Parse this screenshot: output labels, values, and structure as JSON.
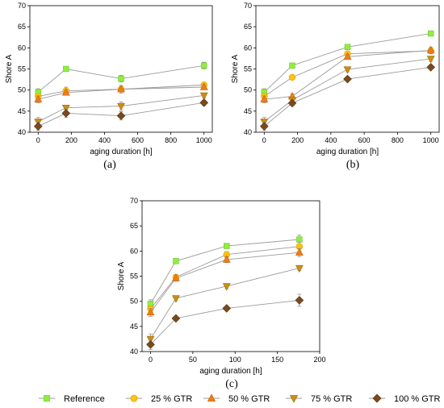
{
  "legend": [
    {
      "name": "Reference",
      "marker": "square",
      "color": "#90ee40",
      "edge": "#6cc828"
    },
    {
      "name": "25 % GTR",
      "marker": "circle",
      "color": "#ffc20e",
      "edge": "#d9a000"
    },
    {
      "name": "50 % GTR",
      "marker": "triangle-up",
      "color": "#f07d18",
      "edge": "#c86000"
    },
    {
      "name": "75 % GTR",
      "marker": "triangle-down",
      "color": "#cc8e14",
      "edge": "#a06a00"
    },
    {
      "name": "100 % GTR",
      "marker": "diamond",
      "color": "#7a4a1e",
      "edge": "#5a3410"
    }
  ],
  "line_color": "#9a9a9a",
  "chart_data": [
    {
      "type": "line",
      "panel_label": "(a)",
      "xlabel": "aging duration [h]",
      "ylabel": "Shore A",
      "xlim": [
        -50,
        1050
      ],
      "ylim": [
        40,
        70
      ],
      "xticks": [
        0,
        200,
        400,
        600,
        800,
        1000
      ],
      "yticks": [
        40,
        45,
        50,
        55,
        60,
        65,
        70
      ],
      "x": [
        0,
        168,
        500,
        1000
      ],
      "series": [
        {
          "name": "Reference",
          "values": [
            49.5,
            55.0,
            52.7,
            55.8
          ],
          "errors": [
            0.8,
            0.3,
            0.8,
            0.8
          ]
        },
        {
          "name": "25 % GTR",
          "values": [
            48.5,
            49.8,
            50.2,
            51.2
          ],
          "errors": [
            0.6,
            0.9,
            0.6,
            0.5
          ]
        },
        {
          "name": "50 % GTR",
          "values": [
            47.8,
            49.4,
            50.2,
            50.7
          ],
          "errors": [
            0.8,
            0.6,
            0.9,
            0.6
          ]
        },
        {
          "name": "75 % GTR",
          "values": [
            42.5,
            45.8,
            46.2,
            48.7
          ],
          "errors": [
            1.0,
            0.4,
            1.0,
            0.6
          ]
        },
        {
          "name": "100 % GTR",
          "values": [
            41.4,
            44.5,
            43.9,
            47.0
          ],
          "errors": [
            1.0,
            1.0,
            1.0,
            0.6
          ]
        }
      ]
    },
    {
      "type": "line",
      "panel_label": "(b)",
      "xlabel": "aging duration [h]",
      "ylabel": "Shore A",
      "xlim": [
        -50,
        1050
      ],
      "ylim": [
        40,
        70
      ],
      "xticks": [
        0,
        200,
        400,
        600,
        800,
        1000
      ],
      "yticks": [
        40,
        45,
        50,
        55,
        60,
        65,
        70
      ],
      "x": [
        0,
        168,
        500,
        1000
      ],
      "series": [
        {
          "name": "Reference",
          "values": [
            49.5,
            55.8,
            60.2,
            63.4
          ],
          "errors": [
            0.8,
            0.4,
            0.5,
            0.4
          ]
        },
        {
          "name": "25 % GTR",
          "values": [
            48.5,
            53.0,
            58.6,
            59.3
          ],
          "errors": [
            0.6,
            0.4,
            0.5,
            0.5
          ]
        },
        {
          "name": "50 % GTR",
          "values": [
            47.8,
            48.5,
            57.9,
            59.4
          ],
          "errors": [
            0.8,
            0.6,
            0.6,
            0.8
          ]
        },
        {
          "name": "75 % GTR",
          "values": [
            42.5,
            47.6,
            54.9,
            57.4
          ],
          "errors": [
            1.0,
            0.6,
            0.6,
            0.6
          ]
        },
        {
          "name": "100 % GTR",
          "values": [
            41.4,
            46.9,
            52.6,
            55.4
          ],
          "errors": [
            1.0,
            0.6,
            0.5,
            0.4
          ]
        }
      ]
    },
    {
      "type": "line",
      "panel_label": "(c)",
      "xlabel": "aging duration [h]",
      "ylabel": "Shore A",
      "xlim": [
        -10,
        200
      ],
      "ylim": [
        40,
        70
      ],
      "xticks": [
        0,
        50,
        100,
        150,
        200
      ],
      "yticks": [
        40,
        45,
        50,
        55,
        60,
        65,
        70
      ],
      "x": [
        0,
        30,
        90,
        176
      ],
      "series": [
        {
          "name": "Reference",
          "values": [
            49.5,
            58.0,
            61.0,
            62.3
          ],
          "errors": [
            0.8,
            0.5,
            0.4,
            0.9
          ]
        },
        {
          "name": "25 % GTR",
          "values": [
            48.5,
            54.8,
            59.3,
            60.9
          ],
          "errors": [
            0.6,
            0.5,
            0.6,
            0.9
          ]
        },
        {
          "name": "50 % GTR",
          "values": [
            47.8,
            54.6,
            58.3,
            59.7
          ],
          "errors": [
            0.8,
            0.6,
            0.6,
            0.8
          ]
        },
        {
          "name": "75 % GTR",
          "values": [
            42.5,
            50.6,
            53.0,
            56.6
          ],
          "errors": [
            1.0,
            0.5,
            0.5,
            0.5
          ]
        },
        {
          "name": "100 % GTR",
          "values": [
            41.4,
            46.6,
            48.6,
            50.2
          ],
          "errors": [
            1.0,
            0.4,
            0.4,
            1.2
          ]
        }
      ]
    }
  ]
}
